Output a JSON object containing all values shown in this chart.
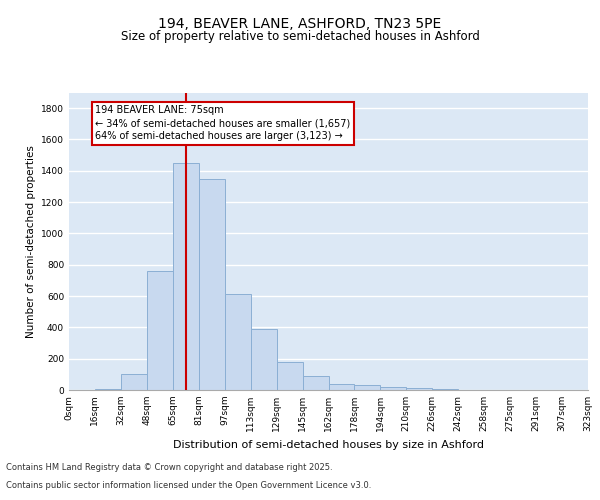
{
  "title_line1": "194, BEAVER LANE, ASHFORD, TN23 5PE",
  "title_line2": "Size of property relative to semi-detached houses in Ashford",
  "xlabel": "Distribution of semi-detached houses by size in Ashford",
  "ylabel": "Number of semi-detached properties",
  "annotation_title": "194 BEAVER LANE: 75sqm",
  "annotation_line1": "← 34% of semi-detached houses are smaller (1,657)",
  "annotation_line2": "64% of semi-detached houses are larger (3,123) →",
  "footnote1": "Contains HM Land Registry data © Crown copyright and database right 2025.",
  "footnote2": "Contains public sector information licensed under the Open Government Licence v3.0.",
  "bin_labels": [
    "0sqm",
    "16sqm",
    "32sqm",
    "48sqm",
    "65sqm",
    "81sqm",
    "97sqm",
    "113sqm",
    "129sqm",
    "145sqm",
    "162sqm",
    "178sqm",
    "194sqm",
    "210sqm",
    "226sqm",
    "242sqm",
    "258sqm",
    "275sqm",
    "291sqm",
    "307sqm",
    "323sqm"
  ],
  "bar_heights": [
    0,
    5,
    100,
    760,
    1450,
    1350,
    610,
    390,
    180,
    90,
    40,
    30,
    20,
    10,
    5,
    2,
    1,
    0,
    0,
    0
  ],
  "n_bars": 20,
  "property_bin": 4,
  "bar_color": "#c8d9ef",
  "bar_edge_color": "#8bafd4",
  "vline_color": "#cc0000",
  "annotation_box_color": "#cc0000",
  "bg_color": "#dce8f5",
  "grid_color": "#ffffff",
  "ylim_max": 1900,
  "yticks": [
    0,
    200,
    400,
    600,
    800,
    1000,
    1200,
    1400,
    1600,
    1800
  ],
  "title_fontsize": 10,
  "subtitle_fontsize": 8.5,
  "ylabel_fontsize": 7.5,
  "xlabel_fontsize": 8,
  "tick_fontsize": 6.5,
  "annot_fontsize": 7,
  "footnote_fontsize": 6
}
